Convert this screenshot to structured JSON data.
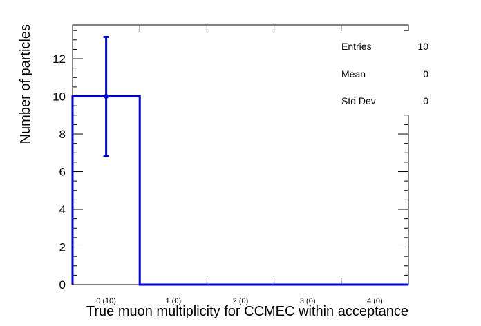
{
  "chart_data": {
    "type": "bar",
    "title": "",
    "xlabel": "True muon multiplicity for CCMEC within acceptance",
    "ylabel": "Number of particles",
    "categories": [
      "0 (10)",
      "1 (0)",
      "2 (0)",
      "3 (0)",
      "4 (0)"
    ],
    "values": [
      10,
      0,
      0,
      0,
      0
    ],
    "errors": [
      3.16,
      0,
      0,
      0,
      0
    ],
    "ylim": [
      0,
      13.8
    ],
    "yticks": [
      0,
      2,
      4,
      6,
      8,
      10,
      12
    ],
    "color": "#0000cc",
    "style": "histogram-step",
    "stats": {
      "entries_label": "Entries",
      "entries_value": "10",
      "mean_label": "Mean",
      "mean_value": "0",
      "std_label": "Std Dev",
      "std_value": "0"
    }
  }
}
